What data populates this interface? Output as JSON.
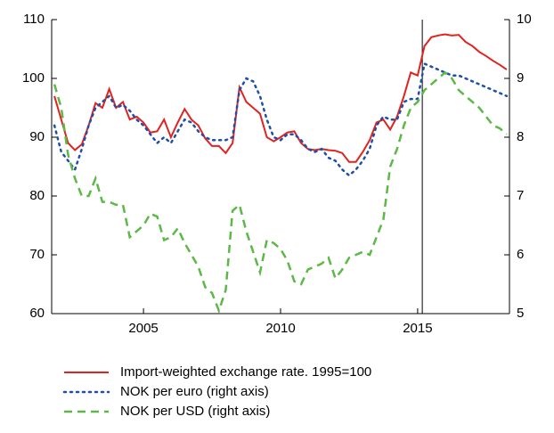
{
  "chart_data": {
    "type": "line",
    "x": [
      2001.75,
      2002,
      2002.25,
      2002.5,
      2002.75,
      2003,
      2003.25,
      2003.5,
      2003.75,
      2004,
      2004.25,
      2004.5,
      2004.75,
      2005,
      2005.25,
      2005.5,
      2005.75,
      2006,
      2006.25,
      2006.5,
      2006.75,
      2007,
      2007.25,
      2007.5,
      2007.75,
      2008,
      2008.25,
      2008.5,
      2008.75,
      2009,
      2009.25,
      2009.5,
      2009.75,
      2010,
      2010.25,
      2010.5,
      2010.75,
      2011,
      2011.25,
      2011.5,
      2011.75,
      2012,
      2012.25,
      2012.5,
      2012.75,
      2013,
      2013.25,
      2013.5,
      2013.75,
      2014,
      2014.25,
      2014.5,
      2014.75,
      2015,
      2015.25,
      2015.5,
      2015.75,
      2016,
      2016.25,
      2016.5,
      2016.75,
      2017,
      2017.25,
      2017.5,
      2017.75,
      2018,
      2018.25
    ],
    "series": [
      {
        "name": "Import-weighted exchange rate. 1995=100",
        "color": "#e0231f",
        "dash": "solid",
        "axis": "y",
        "values": [
          97,
          93,
          89,
          87.8,
          88.8,
          92,
          95.8,
          95,
          98.2,
          95,
          96,
          93,
          93.5,
          92.5,
          90.8,
          91,
          93,
          90,
          92.5,
          94.8,
          93,
          92,
          89.8,
          88.5,
          88.5,
          87.3,
          89,
          98.5,
          96,
          95,
          94,
          90,
          89.3,
          90,
          90.8,
          91,
          89,
          88,
          87.8,
          88,
          87.8,
          87.7,
          87.3,
          85.8,
          85.8,
          87.5,
          89.5,
          92.5,
          93,
          91.3,
          93.5,
          97,
          101,
          100.5,
          105.5,
          107,
          107.3,
          107.5,
          107.3,
          107.4,
          106.2,
          105.5,
          104.5,
          103.8,
          103,
          102.3,
          101.5
        ]
      },
      {
        "name": "NOK per euro (right axis)",
        "color": "#1f4fa8",
        "dash": "dot",
        "axis": "y2",
        "values": [
          8.2,
          7.75,
          7.6,
          7.45,
          7.8,
          8.2,
          8.5,
          8.6,
          8.7,
          8.5,
          8.55,
          8.45,
          8.3,
          8.2,
          8.05,
          7.9,
          8.0,
          7.9,
          8.1,
          8.3,
          8.25,
          8.1,
          8.0,
          7.95,
          7.95,
          7.95,
          8.0,
          8.8,
          9.0,
          8.95,
          8.7,
          8.3,
          8.0,
          7.95,
          8.05,
          8.05,
          7.95,
          7.8,
          7.75,
          7.8,
          7.65,
          7.6,
          7.45,
          7.35,
          7.45,
          7.6,
          7.8,
          8.2,
          8.35,
          8.3,
          8.3,
          8.6,
          8.65,
          8.65,
          9.25,
          9.2,
          9.15,
          9.1,
          9.05,
          9.05,
          9.0,
          8.95,
          8.9,
          8.85,
          8.8,
          8.75,
          8.7
        ]
      },
      {
        "name": "NOK per USD (right axis)",
        "color": "#5cb947",
        "dash": "dash",
        "axis": "y2",
        "values": [
          8.9,
          8.5,
          7.7,
          7.3,
          7.0,
          7.0,
          7.3,
          6.9,
          6.9,
          6.85,
          6.85,
          6.3,
          6.4,
          6.5,
          6.7,
          6.65,
          6.25,
          6.3,
          6.45,
          6.2,
          6.0,
          5.8,
          5.45,
          5.35,
          5.05,
          5.4,
          6.75,
          6.85,
          6.4,
          6.05,
          5.7,
          6.25,
          6.2,
          6.1,
          5.9,
          5.55,
          5.5,
          5.75,
          5.8,
          5.85,
          5.95,
          5.6,
          5.75,
          5.95,
          6.0,
          6.05,
          6.0,
          6.3,
          6.6,
          7.5,
          7.8,
          8.2,
          8.5,
          8.6,
          8.8,
          8.9,
          9.0,
          9.1,
          9.0,
          8.8,
          8.7,
          8.6,
          8.5,
          8.35,
          8.2,
          8.15,
          8.05
        ]
      }
    ],
    "xlim": [
      2001.65,
      2018.35
    ],
    "xticks": [
      2005,
      2010,
      2015
    ],
    "ylim": [
      60,
      110
    ],
    "yticks": [
      60,
      70,
      80,
      90,
      100,
      110
    ],
    "y2lim": [
      5,
      10
    ],
    "y2ticks": [
      5,
      6,
      7,
      8,
      9,
      10
    ],
    "vline": 2015.17,
    "legend": "bottom",
    "grid": false
  }
}
